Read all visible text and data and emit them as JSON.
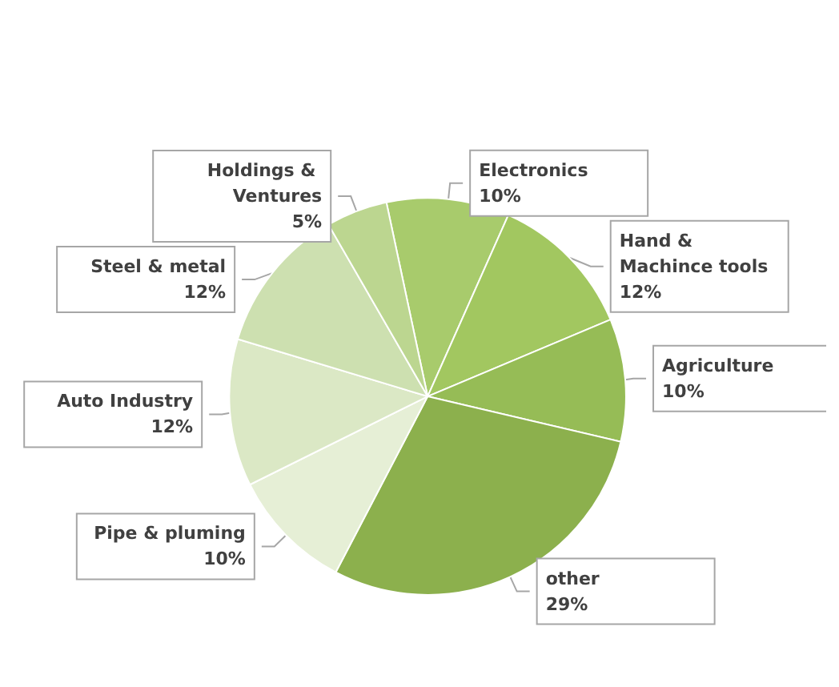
{
  "chart_data": {
    "type": "pie",
    "categories": [
      "Electronics",
      "Hand & Machince tools",
      "Agriculture",
      "other",
      "Pipe & pluming",
      "Auto Industry",
      "Steel & metal",
      "Holdings & Ventures"
    ],
    "values": [
      10,
      12,
      10,
      29,
      10,
      12,
      12,
      5
    ],
    "colors": [
      "#a8cb6c",
      "#a2c760",
      "#96bc56",
      "#8cb04d",
      "#e6efd6",
      "#dbe8c5",
      "#cde0b0",
      "#bcd690"
    ],
    "value_labels": [
      "10%",
      "12%",
      "10%",
      "29%",
      "10%",
      "12%",
      "12%",
      "5%"
    ]
  }
}
